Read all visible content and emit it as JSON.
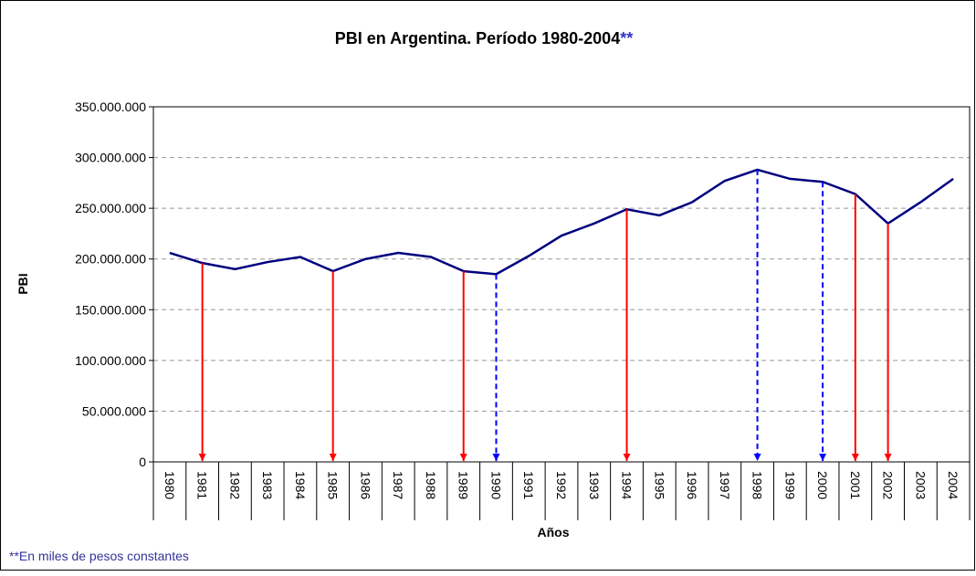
{
  "chart_data": {
    "type": "line",
    "title": "PBI en Argentina. Período 1980-2004",
    "title_mark": "**",
    "footnote": "**En miles de pesos constantes",
    "x_label": "Años",
    "y_label": "PBI",
    "categories": [
      "1980",
      "1981",
      "1982",
      "1983",
      "1984",
      "1985",
      "1986",
      "1987",
      "1988",
      "1989",
      "1990",
      "1991",
      "1992",
      "1993",
      "1994",
      "1995",
      "1996",
      "1997",
      "1998",
      "1999",
      "2000",
      "2001",
      "2002",
      "2003",
      "2004"
    ],
    "series": [
      {
        "color": "#000080",
        "values": [
          206000000,
          196000000,
          190000000,
          197000000,
          202000000,
          188000000,
          200000000,
          206000000,
          202000000,
          188000000,
          185000000,
          203000000,
          223000000,
          235000000,
          249000000,
          243000000,
          256000000,
          277000000,
          288000000,
          279000000,
          276000000,
          264000000,
          235000000,
          256000000,
          279000000
        ]
      }
    ],
    "ylim": [
      0,
      350000000
    ],
    "yticks": [
      0,
      {
        "value": 50000000,
        "label": "50.000.000"
      },
      {
        "value": 100000000,
        "label": "100.000.000"
      },
      {
        "value": 150000000,
        "label": "150.000.000"
      },
      {
        "value": 200000000,
        "label": "200.000.000"
      },
      {
        "value": 250000000,
        "label": "250.000.000"
      },
      {
        "value": 300000000,
        "label": "300.000.000"
      },
      {
        "value": 350000000,
        "label": "350.000.000"
      }
    ],
    "grid": true,
    "down_arrows": [
      {
        "category": "1981",
        "color": "#ff0000",
        "style": "solid"
      },
      {
        "category": "1985",
        "color": "#ff0000",
        "style": "solid"
      },
      {
        "category": "1989",
        "color": "#ff0000",
        "style": "solid"
      },
      {
        "category": "1990",
        "color": "#0000ff",
        "style": "dashed"
      },
      {
        "category": "1994",
        "color": "#ff0000",
        "style": "solid"
      },
      {
        "category": "1998",
        "color": "#0000ff",
        "style": "dashed"
      },
      {
        "category": "2000",
        "color": "#0000ff",
        "style": "dashed"
      },
      {
        "category": "2001",
        "color": "#ff0000",
        "style": "solid"
      },
      {
        "category": "2002",
        "color": "#ff0000",
        "style": "solid"
      }
    ]
  }
}
